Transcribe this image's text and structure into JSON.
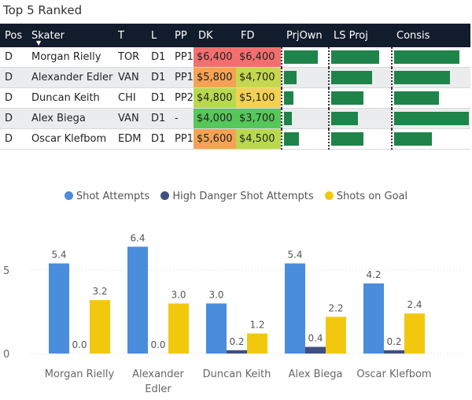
{
  "title": "Top 5 Ranked",
  "columns": [
    "Pos",
    "Skater",
    "T",
    "L",
    "PP",
    "DK",
    "FD",
    "PrjOwn",
    "LS Proj",
    "Consis"
  ],
  "rows": [
    {
      "pos": "D",
      "skater": "Morgan Rielly",
      "t": "TOR",
      "l": "D1",
      "pp": "PP1",
      "dk": "$6,400",
      "fd": "$6,400",
      "dk_color": "#f36f6f",
      "fd_color": "#f36f6f",
      "prjown": 0.8,
      "lsproj": 0.82,
      "consis": 0.87
    },
    {
      "pos": "D",
      "skater": "Alexander Edler",
      "t": "VAN",
      "l": "D1",
      "pp": "PP1",
      "dk": "$5,800",
      "fd": "$4,700",
      "dk_color": "#f5a352",
      "fd_color": "#c5d84d",
      "prjown": 0.3,
      "lsproj": 0.7,
      "consis": 0.75
    },
    {
      "pos": "D",
      "skater": "Duncan Keith",
      "t": "CHI",
      "l": "D1",
      "pp": "PP2",
      "dk": "$4,800",
      "fd": "$5,100",
      "dk_color": "#b8d94e",
      "fd_color": "#f3d153",
      "prjown": 0.22,
      "lsproj": 0.55,
      "consis": 0.6
    },
    {
      "pos": "D",
      "skater": "Alex Biega",
      "t": "VAN",
      "l": "D1",
      "pp": "-",
      "dk": "$4,000",
      "fd": "$3,700",
      "dk_color": "#56c759",
      "fd_color": "#56c759",
      "prjown": 0.18,
      "lsproj": 0.46,
      "consis": 1.0
    },
    {
      "pos": "D",
      "skater": "Oscar Klefbom",
      "t": "EDM",
      "l": "D1",
      "pp": "PP1",
      "dk": "$5,600",
      "fd": "$4,500",
      "dk_color": "#f5a352",
      "fd_color": "#b8d94e",
      "prjown": 0.35,
      "lsproj": 0.55,
      "consis": 0.5
    }
  ],
  "chart_data": {
    "type": "bar",
    "categories": [
      "Morgan Rielly",
      "Alexander Edler",
      "Duncan Keith",
      "Alex Biega",
      "Oscar Klefbom"
    ],
    "category_lines": [
      [
        "Morgan Rielly"
      ],
      [
        "Alexander",
        "Edler"
      ],
      [
        "Duncan Keith"
      ],
      [
        "Alex Biega"
      ],
      [
        "Oscar Klefbom"
      ]
    ],
    "series": [
      {
        "name": "Shot Attempts",
        "color": "#4a8ddc",
        "values": [
          5.4,
          6.4,
          3.0,
          5.4,
          4.2
        ]
      },
      {
        "name": "High Danger Shot Attempts",
        "color": "#3f5080",
        "values": [
          0.0,
          0.0,
          0.2,
          0.4,
          0.2
        ]
      },
      {
        "name": "Shots on Goal",
        "color": "#f2c80f",
        "values": [
          3.2,
          3.0,
          1.2,
          2.2,
          2.4
        ]
      }
    ],
    "labels": [
      [
        "5.4",
        "0.0",
        "3.2"
      ],
      [
        "6.4",
        "0.0",
        "3.0"
      ],
      [
        "3.0",
        "0.2",
        "1.2"
      ],
      [
        "5.4",
        "0.4",
        "2.2"
      ],
      [
        "4.2",
        "0.2",
        "2.4"
      ]
    ],
    "yticks": [
      "0",
      "5"
    ],
    "ylim": [
      0,
      7
    ],
    "legend": "top-center",
    "grid": true
  }
}
